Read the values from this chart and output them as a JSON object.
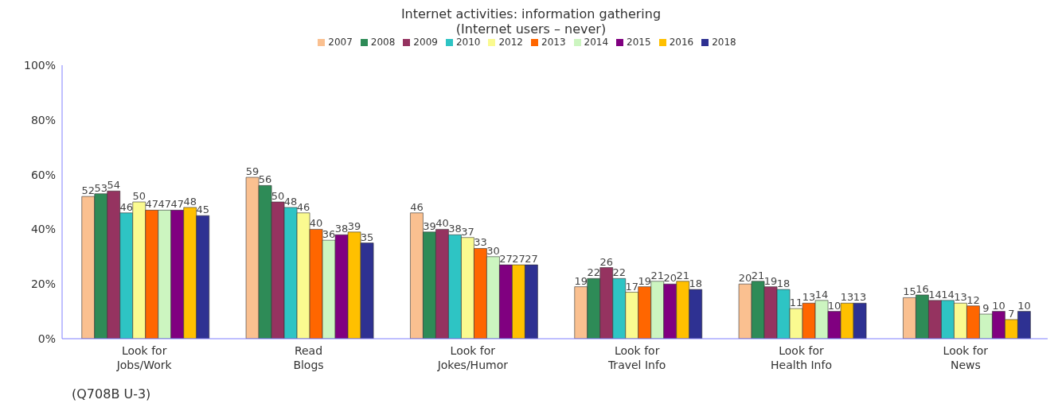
{
  "chart_data": {
    "type": "bar",
    "title": "Internet activities: information gathering",
    "subtitle": "(Internet users – never)",
    "categories": [
      "Look for\nJobs/Work",
      "Read\nBlogs",
      "Look for\nJokes/Humor",
      "Look for\nTravel Info",
      "Look for\nHealth Info",
      "Look for\nNews"
    ],
    "series": [
      {
        "name": "2007",
        "color": "#fac090",
        "values": [
          52,
          59,
          46,
          19,
          20,
          15
        ]
      },
      {
        "name": "2008",
        "color": "#2e8b57",
        "values": [
          53,
          56,
          39,
          22,
          21,
          16
        ]
      },
      {
        "name": "2009",
        "color": "#953360",
        "values": [
          54,
          50,
          40,
          26,
          19,
          14
        ]
      },
      {
        "name": "2010",
        "color": "#2ec4c4",
        "values": [
          46,
          48,
          38,
          22,
          18,
          14
        ]
      },
      {
        "name": "2012",
        "color": "#fafa90",
        "values": [
          50,
          46,
          37,
          17,
          11,
          13
        ]
      },
      {
        "name": "2013",
        "color": "#ff6600",
        "values": [
          47,
          40,
          33,
          19,
          13,
          12
        ]
      },
      {
        "name": "2014",
        "color": "#ccf5c0",
        "values": [
          47,
          36,
          30,
          21,
          14,
          9
        ]
      },
      {
        "name": "2015",
        "color": "#800080",
        "values": [
          47,
          38,
          27,
          20,
          10,
          10
        ]
      },
      {
        "name": "2016",
        "color": "#ffc000",
        "values": [
          48,
          39,
          27,
          21,
          13,
          7
        ]
      },
      {
        "name": "2018",
        "color": "#2e3192",
        "values": [
          45,
          35,
          27,
          18,
          13,
          10
        ]
      }
    ],
    "ylim": [
      0,
      100
    ],
    "yticks": [
      {
        "value": 0,
        "label": "0%"
      },
      {
        "value": 20,
        "label": "20%"
      },
      {
        "value": 40,
        "label": "40%"
      },
      {
        "value": 60,
        "label": "60%"
      },
      {
        "value": 80,
        "label": "80%"
      },
      {
        "value": 100,
        "label": "100%"
      }
    ],
    "grid": false,
    "legend": "top",
    "data_labels": true,
    "annotations": [
      "(Q708B U-3)"
    ]
  }
}
